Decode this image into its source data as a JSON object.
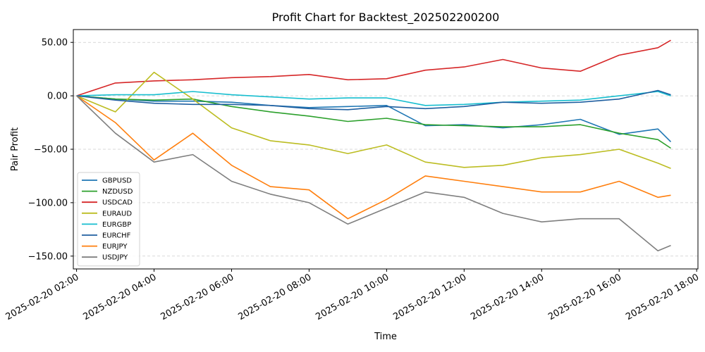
{
  "chart_data": {
    "type": "line",
    "title": "Profit Chart for Backtest_202502200200",
    "xlabel": "Time",
    "ylabel": "Pair Profit",
    "ylim": [
      -162,
      62
    ],
    "xlim": [
      "2025-02-20 01:55",
      "2025-02-20 18:02"
    ],
    "grid": "y-dashed",
    "legend_position": "lower-left",
    "y_ticks": [
      50,
      0,
      -50,
      -100,
      -150
    ],
    "y_tick_labels": [
      "50.00",
      "0.00",
      "−50.00",
      "−100.00",
      "−150.00"
    ],
    "x_ticks": [
      "2025-02-20 02:00",
      "2025-02-20 04:00",
      "2025-02-20 06:00",
      "2025-02-20 08:00",
      "2025-02-20 10:00",
      "2025-02-20 12:00",
      "2025-02-20 14:00",
      "2025-02-20 16:00",
      "2025-02-20 18:00"
    ],
    "x_tick_labels": [
      "2025-02-20 02:00",
      "2025-02-20 04:00",
      "2025-02-20 06:00",
      "2025-02-20 08:00",
      "2025-02-20 10:00",
      "2025-02-20 12:00",
      "2025-02-20 14:00",
      "2025-02-20 16:00",
      "2025-02-20 18:00"
    ],
    "x": [
      "2025-02-20 02:00",
      "2025-02-20 03:00",
      "2025-02-20 04:00",
      "2025-02-20 05:00",
      "2025-02-20 06:00",
      "2025-02-20 07:00",
      "2025-02-20 08:00",
      "2025-02-20 09:00",
      "2025-02-20 10:00",
      "2025-02-20 11:00",
      "2025-02-20 12:00",
      "2025-02-20 13:00",
      "2025-02-20 14:00",
      "2025-02-20 15:00",
      "2025-02-20 16:00",
      "2025-02-20 17:00",
      "2025-02-20 17:20"
    ],
    "series": [
      {
        "name": "GBPUSD",
        "color": "#1f77b4",
        "values": [
          0,
          -3,
          -5,
          -5,
          -6,
          -9,
          -11,
          -10,
          -9,
          -28,
          -27,
          -30,
          -27,
          -22,
          -36,
          -31,
          -43
        ]
      },
      {
        "name": "NZDUSD",
        "color": "#2ca02c",
        "values": [
          0,
          -3,
          -4,
          -3,
          -10,
          -15,
          -19,
          -24,
          -21,
          -27,
          -28,
          -29,
          -29,
          -27,
          -35,
          -41,
          -49
        ]
      },
      {
        "name": "USDCAD",
        "color": "#d62728",
        "values": [
          0,
          12,
          14,
          15,
          17,
          18,
          20,
          15,
          16,
          24,
          27,
          34,
          26,
          23,
          38,
          45,
          52
        ]
      },
      {
        "name": "EURAUD",
        "color": "#bcbd22",
        "values": [
          0,
          -15,
          22,
          -3,
          -30,
          -42,
          -46,
          -54,
          -46,
          -62,
          -67,
          -65,
          -58,
          -55,
          -50,
          -63,
          -68
        ]
      },
      {
        "name": "EURGBP",
        "color": "#17becf",
        "values": [
          0,
          1,
          1,
          4,
          1,
          -1,
          -3,
          -2,
          -2,
          -9,
          -8,
          -6,
          -5,
          -4,
          0,
          4,
          0
        ]
      },
      {
        "name": "EURCHF",
        "color": "#1f5fa0",
        "values": [
          0,
          -4,
          -7,
          -8,
          -8,
          -9,
          -12,
          -13,
          -10,
          -12,
          -10,
          -6,
          -7,
          -6,
          -3,
          5,
          1
        ]
      },
      {
        "name": "EURJPY",
        "color": "#ff7f0e",
        "values": [
          0,
          -25,
          -60,
          -35,
          -65,
          -85,
          -88,
          -115,
          -97,
          -75,
          -80,
          -85,
          -90,
          -90,
          -80,
          -95,
          -93
        ]
      },
      {
        "name": "USDJPY",
        "color": "#7f7f7f",
        "values": [
          0,
          -35,
          -62,
          -55,
          -80,
          -92,
          -100,
          -120,
          -105,
          -90,
          -95,
          -110,
          -118,
          -115,
          -115,
          -145,
          -140
        ]
      }
    ]
  }
}
